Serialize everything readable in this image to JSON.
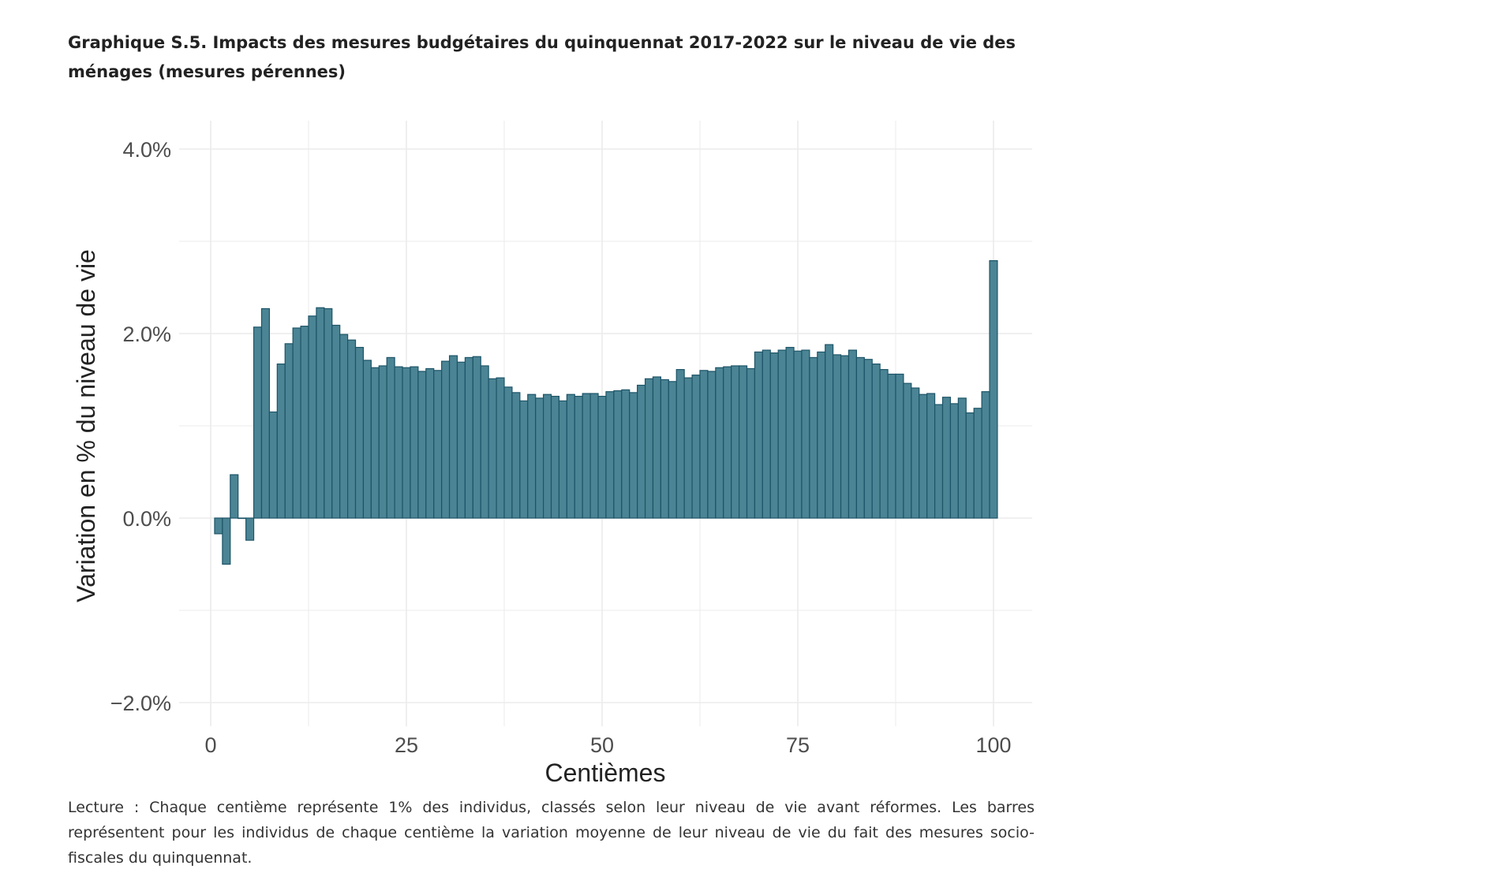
{
  "title": "Graphique S.5. Impacts des mesures budgétaires du quinquennat 2017-2022 sur le niveau de vie des ménages (mesures pérennes)",
  "caption": "Lecture : Chaque centième représente 1% des individus, classés selon leur niveau de vie avant réformes. Les barres représentent pour les individus de chaque centième la variation moyenne de leur niveau de vie du fait des mesures socio-fiscales du quinquennat.",
  "colors": {
    "bar_fill": "#4b8494",
    "bar_stroke": "#1d5568",
    "grid": "#ebebeb",
    "tick_text": "#4d4d4d"
  },
  "chart_data": {
    "type": "bar",
    "xlabel": "Centièmes",
    "ylabel": "Variation en % du niveau de vie",
    "xlim": [
      -4,
      105
    ],
    "ylim": [
      -2.25,
      4.3
    ],
    "xticks": [
      0,
      25,
      50,
      75,
      100
    ],
    "xtick_labels": [
      "0",
      "25",
      "50",
      "75",
      "100"
    ],
    "yticks": [
      -2,
      0,
      2,
      4
    ],
    "ytick_labels": [
      "−2.0%",
      "0.0%",
      "2.0%",
      "4.0%"
    ],
    "grid": true,
    "x": [
      1,
      2,
      3,
      4,
      5,
      6,
      7,
      8,
      9,
      10,
      11,
      12,
      13,
      14,
      15,
      16,
      17,
      18,
      19,
      20,
      21,
      22,
      23,
      24,
      25,
      26,
      27,
      28,
      29,
      30,
      31,
      32,
      33,
      34,
      35,
      36,
      37,
      38,
      39,
      40,
      41,
      42,
      43,
      44,
      45,
      46,
      47,
      48,
      49,
      50,
      51,
      52,
      53,
      54,
      55,
      56,
      57,
      58,
      59,
      60,
      61,
      62,
      63,
      64,
      65,
      66,
      67,
      68,
      69,
      70,
      71,
      72,
      73,
      74,
      75,
      76,
      77,
      78,
      79,
      80,
      81,
      82,
      83,
      84,
      85,
      86,
      87,
      88,
      89,
      90,
      91,
      92,
      93,
      94,
      95,
      96,
      97,
      98,
      99,
      100
    ],
    "values": [
      -0.17,
      -0.5,
      0.47,
      0,
      -0.24,
      2.07,
      2.27,
      1.15,
      1.67,
      1.89,
      2.06,
      2.08,
      2.19,
      2.28,
      2.27,
      2.09,
      1.99,
      1.93,
      1.85,
      1.71,
      1.63,
      1.65,
      1.74,
      1.64,
      1.63,
      1.64,
      1.59,
      1.62,
      1.6,
      1.7,
      1.76,
      1.69,
      1.74,
      1.75,
      1.65,
      1.51,
      1.52,
      1.42,
      1.36,
      1.27,
      1.34,
      1.3,
      1.34,
      1.32,
      1.27,
      1.34,
      1.32,
      1.35,
      1.35,
      1.32,
      1.37,
      1.38,
      1.39,
      1.36,
      1.44,
      1.51,
      1.53,
      1.5,
      1.48,
      1.61,
      1.52,
      1.55,
      1.6,
      1.59,
      1.63,
      1.64,
      1.65,
      1.65,
      1.62,
      1.8,
      1.82,
      1.79,
      1.82,
      1.85,
      1.81,
      1.82,
      1.74,
      1.8,
      1.88,
      1.77,
      1.76,
      1.82,
      1.74,
      1.72,
      1.67,
      1.61,
      1.56,
      1.56,
      1.46,
      1.41,
      1.34,
      1.35,
      1.23,
      1.31,
      1.24,
      1.3,
      1.14,
      1.19,
      1.37,
      2.79
    ]
  }
}
